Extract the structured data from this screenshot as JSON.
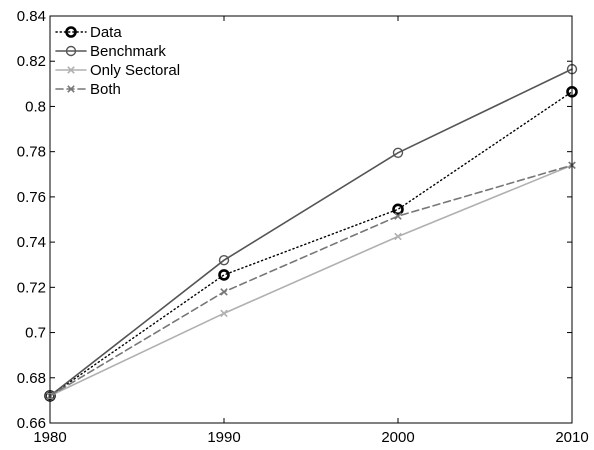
{
  "chart_data": {
    "type": "line",
    "title": "",
    "xlabel": "",
    "ylabel": "",
    "x": [
      1980,
      1990,
      2000,
      2010
    ],
    "xlim": [
      1980,
      2010
    ],
    "ylim": [
      0.66,
      0.84
    ],
    "xticks": [
      1980,
      1990,
      2000,
      2010
    ],
    "xtick_labels": [
      "1980",
      "1990",
      "2000",
      "2010"
    ],
    "yticks": [
      0.66,
      0.68,
      0.7,
      0.72,
      0.74,
      0.76,
      0.78,
      0.8,
      0.82,
      0.84
    ],
    "ytick_labels": [
      "0.66",
      "0.68",
      "0.7",
      "0.72",
      "0.74",
      "0.76",
      "0.78",
      "0.8",
      "0.82",
      "0.84"
    ],
    "grid": false,
    "legend_position": "top-left",
    "series": [
      {
        "name": "Data",
        "values": [
          0.672,
          0.7255,
          0.7545,
          0.8065
        ],
        "color": "#000000",
        "line": "dotted",
        "marker": "circle"
      },
      {
        "name": "Benchmark",
        "values": [
          0.672,
          0.732,
          0.7795,
          0.8165
        ],
        "color": "#555555",
        "line": "solid",
        "marker": "circle"
      },
      {
        "name": "Only Sectoral",
        "values": [
          0.672,
          0.7085,
          0.7425,
          0.774
        ],
        "color": "#b0b0b0",
        "line": "solid",
        "marker": "x"
      },
      {
        "name": "Both",
        "values": [
          0.672,
          0.718,
          0.7515,
          0.774
        ],
        "color": "#777777",
        "line": "dashed",
        "marker": "x"
      }
    ]
  }
}
